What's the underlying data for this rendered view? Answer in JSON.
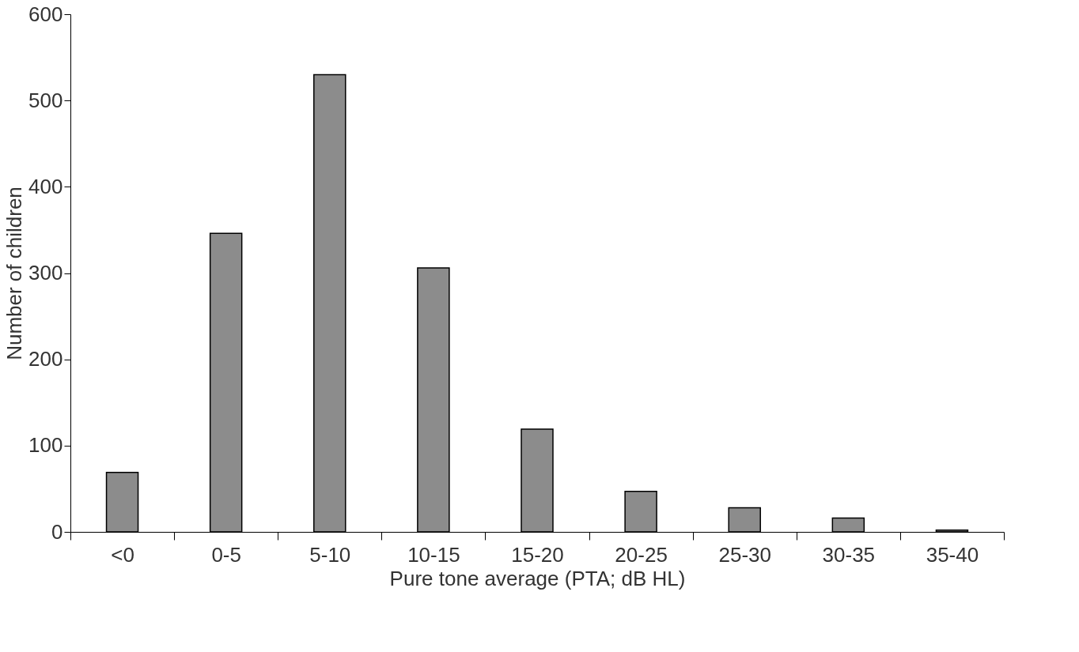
{
  "chart_data": {
    "type": "bar",
    "xlabel": "Pure tone average (PTA; dB HL)",
    "ylabel": "Number of children",
    "categories": [
      "<0",
      "0-5",
      "5-10",
      "10-15",
      "15-20",
      "20-25",
      "25-30",
      "30-35",
      "35-40"
    ],
    "values": [
      69,
      346,
      530,
      306,
      119,
      47,
      28,
      16,
      2
    ],
    "color": "#8c8c8c",
    "ylim": [
      0,
      600
    ],
    "yticks": [
      0,
      100,
      200,
      300,
      400,
      500,
      600
    ],
    "grid": false
  }
}
